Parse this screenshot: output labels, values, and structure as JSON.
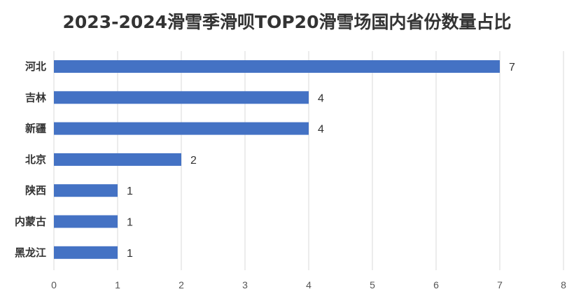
{
  "chart_data": {
    "type": "bar",
    "orientation": "horizontal",
    "title": "2023-2024滑雪季滑呗TOP20滑雪场国内省份数量占比",
    "categories": [
      "河北",
      "吉林",
      "新疆",
      "北京",
      "陕西",
      "内蒙古",
      "黑龙江"
    ],
    "values": [
      7,
      4,
      4,
      2,
      1,
      1,
      1
    ],
    "xlim": [
      0,
      8
    ],
    "xticks": [
      0,
      1,
      2,
      3,
      4,
      5,
      6,
      7,
      8
    ],
    "grid": true,
    "legend": "none",
    "data_labels": true,
    "bar_color": "#4472C4"
  }
}
